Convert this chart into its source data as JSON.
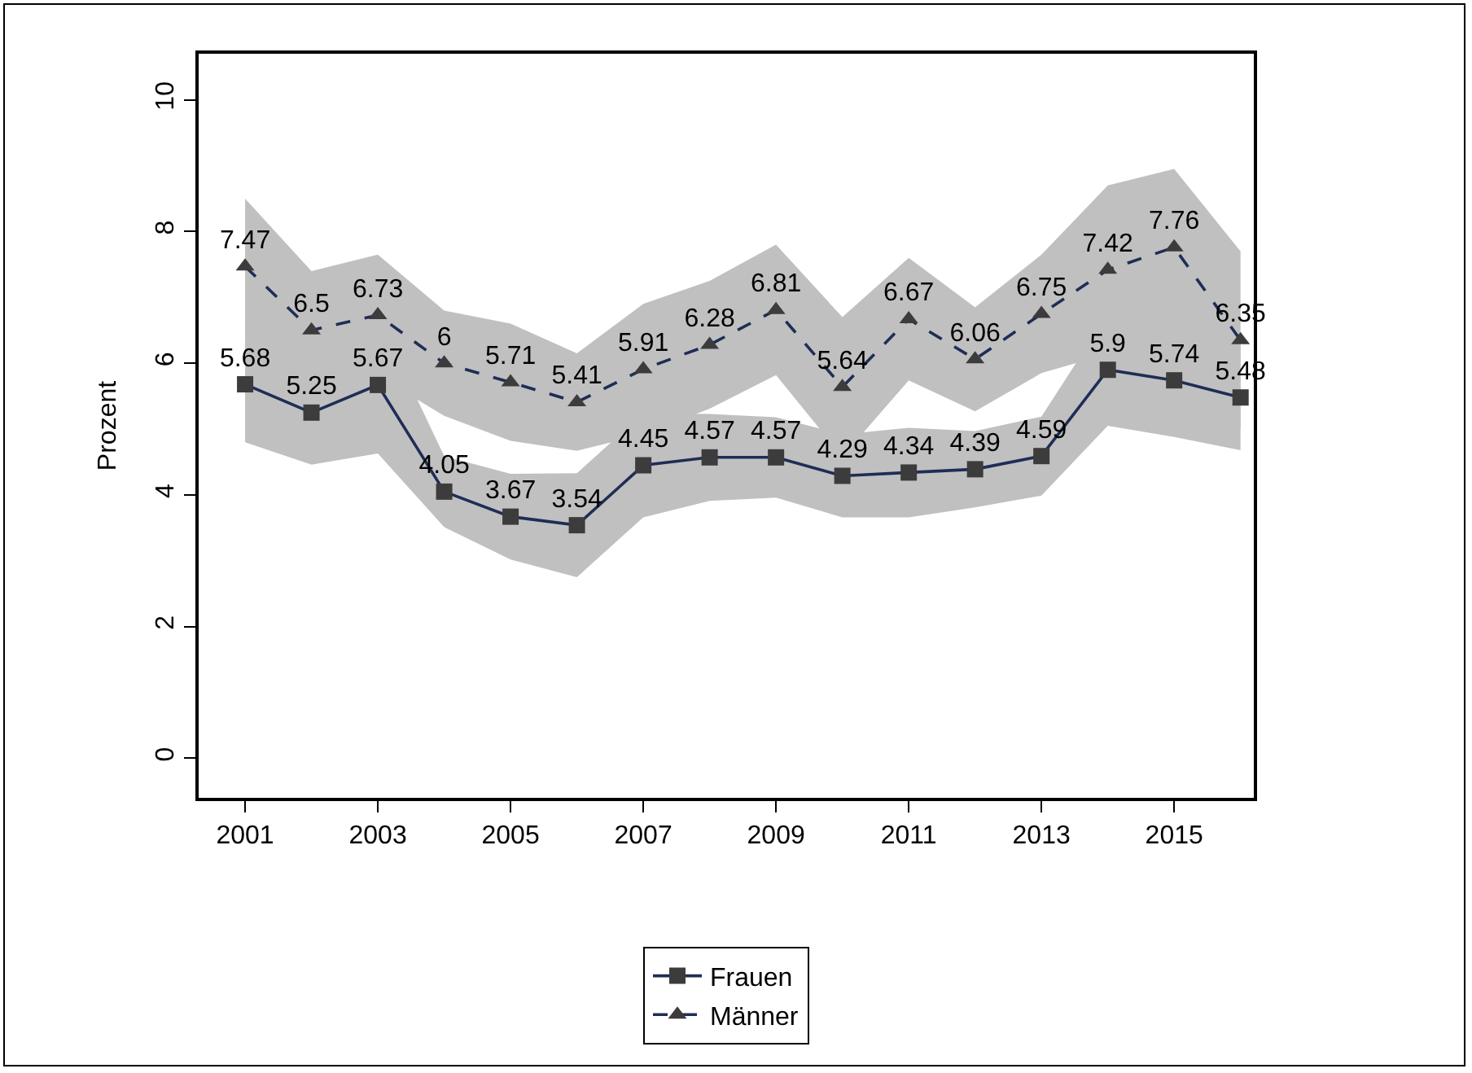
{
  "chart_data": {
    "type": "line",
    "ylabel": "Prozent",
    "x": [
      2001,
      2002,
      2003,
      2004,
      2005,
      2006,
      2007,
      2008,
      2009,
      2010,
      2011,
      2012,
      2013,
      2014,
      2015,
      2016
    ],
    "xlim": [
      2000.3,
      2016.2
    ],
    "xticks": [
      2001,
      2003,
      2005,
      2007,
      2009,
      2011,
      2013,
      2015
    ],
    "ylim": [
      -0.6,
      10.7
    ],
    "yticks": [
      0,
      2,
      4,
      6,
      8,
      10
    ],
    "grid": false,
    "legend": "bottom",
    "data_labels": true,
    "series": [
      {
        "name": "Frauen",
        "color": "#1f2d56",
        "marker": "square",
        "line_style": "solid",
        "values": [
          5.68,
          5.25,
          5.67,
          4.05,
          3.67,
          3.54,
          4.45,
          4.57,
          4.57,
          4.29,
          4.34,
          4.39,
          4.59,
          5.9,
          5.74,
          5.48
        ],
        "lower": [
          4.8,
          4.46,
          4.63,
          3.51,
          3.02,
          2.75,
          3.66,
          3.91,
          3.96,
          3.66,
          3.66,
          3.81,
          3.99,
          5.05,
          4.88,
          4.68
        ],
        "upper": [
          6.56,
          6.04,
          6.71,
          4.59,
          4.32,
          4.33,
          5.24,
          5.23,
          5.18,
          4.92,
          5.02,
          4.97,
          5.19,
          6.75,
          6.6,
          6.28
        ]
      },
      {
        "name": "Männer",
        "color": "#1f2d56",
        "marker": "triangle",
        "line_style": "dashed",
        "values": [
          7.47,
          6.5,
          6.73,
          6,
          5.71,
          5.41,
          5.91,
          6.28,
          6.81,
          5.64,
          6.67,
          6.06,
          6.75,
          7.42,
          7.76,
          6.35
        ],
        "lower": [
          6.44,
          5.6,
          5.81,
          5.2,
          4.82,
          4.67,
          4.92,
          5.31,
          5.82,
          4.58,
          5.74,
          5.27,
          5.85,
          6.14,
          6.57,
          5.0
        ],
        "upper": [
          8.5,
          7.4,
          7.65,
          6.8,
          6.6,
          6.15,
          6.9,
          7.25,
          7.8,
          6.7,
          7.6,
          6.85,
          7.65,
          8.7,
          8.95,
          7.7
        ]
      }
    ]
  }
}
